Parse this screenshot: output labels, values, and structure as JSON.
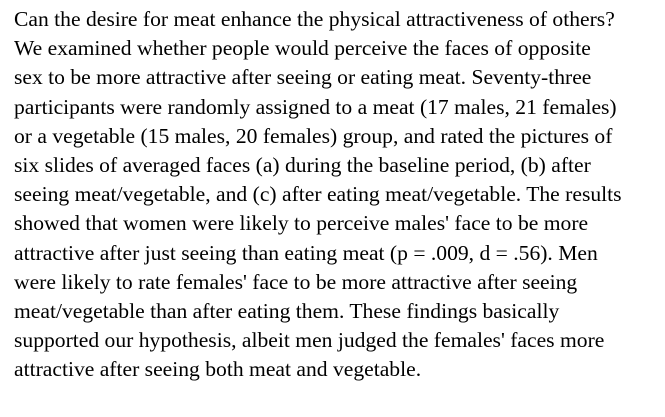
{
  "abstract": {
    "lines": [
      "Can the desire for meat enhance the physical attractiveness of others?",
      "We examined whether people would perceive the faces of opposite",
      "sex to be more attractive after seeing or eating meat. Seventy-three",
      "participants were randomly assigned to a meat (17 males, 21 females)",
      "or a vegetable (15 males, 20 females) group, and rated the pictures of",
      "six slides of averaged faces (a) during the baseline period, (b) after",
      "seeing meat/vegetable, and (c) after eating meat/vegetable. The results",
      "showed that women were likely to perceive males' face to be more",
      "attractive after just seeing than eating meat (p = .009, d = .56). Men",
      "were likely to rate females' face to be more attractive after seeing",
      "meat/vegetable than after eating them. These findings basically",
      "supported our hypothesis, albeit men judged the females' faces more",
      "attractive after seeing both meat and vegetable."
    ]
  }
}
